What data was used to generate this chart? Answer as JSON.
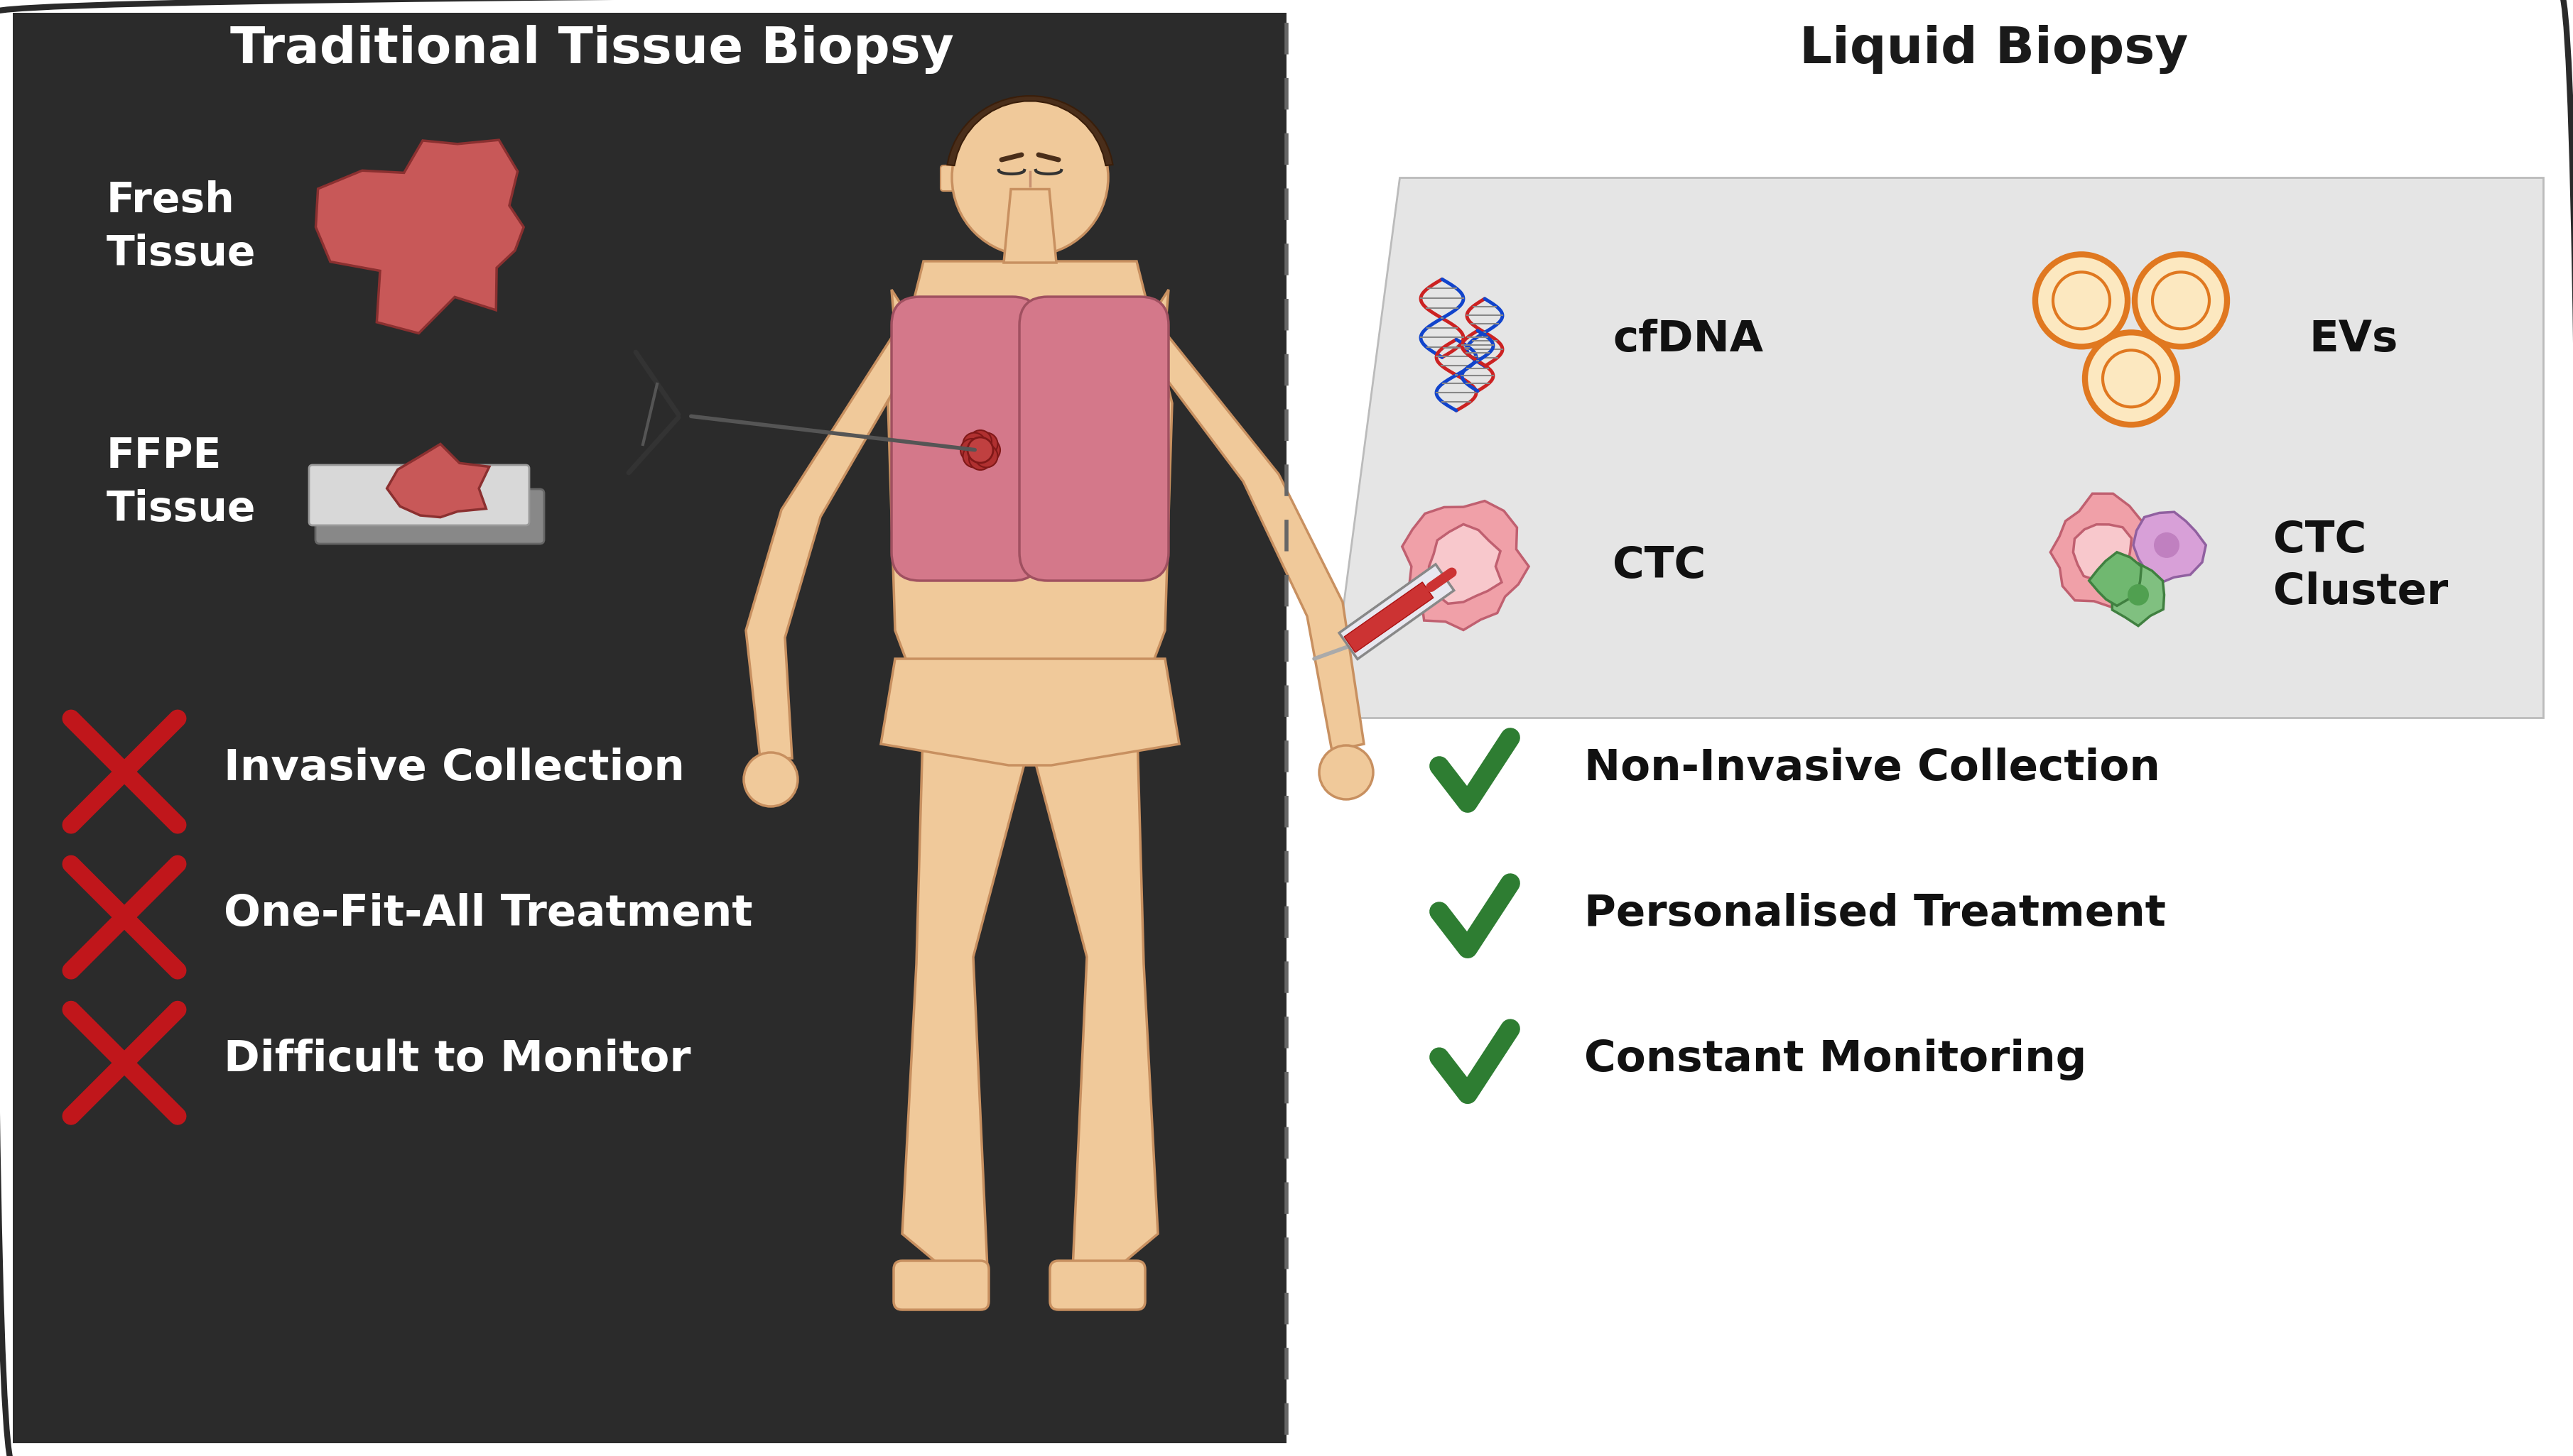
{
  "left_title": "Traditional Tissue Biopsy",
  "right_title": "Liquid Biopsy",
  "left_bg": "#2b2b2b",
  "right_bg": "#ffffff",
  "left_title_color": "#ffffff",
  "right_title_color": "#1a1a1a",
  "fresh_tissue_label": "Fresh\nTissue",
  "ffpe_tissue_label": "FFPE\nTissue",
  "left_negatives": [
    "Invasive Collection",
    "One-Fit-All Treatment",
    "Difficult to Monitor"
  ],
  "right_positives": [
    "Non-Invasive Collection",
    "Personalised Treatment",
    "Constant Monitoring"
  ],
  "cross_color": "#c0161b",
  "check_color": "#2e7d32",
  "panel_bg": "#e5e5e5",
  "border_color": "#2a2a2a",
  "body_skin": "#f0c99a",
  "body_outline": "#c89060",
  "lung_color": "#d4788a",
  "lung_edge": "#a05060",
  "title_fontsize": 52,
  "item_fontsize": 44,
  "label_fontsize": 42
}
